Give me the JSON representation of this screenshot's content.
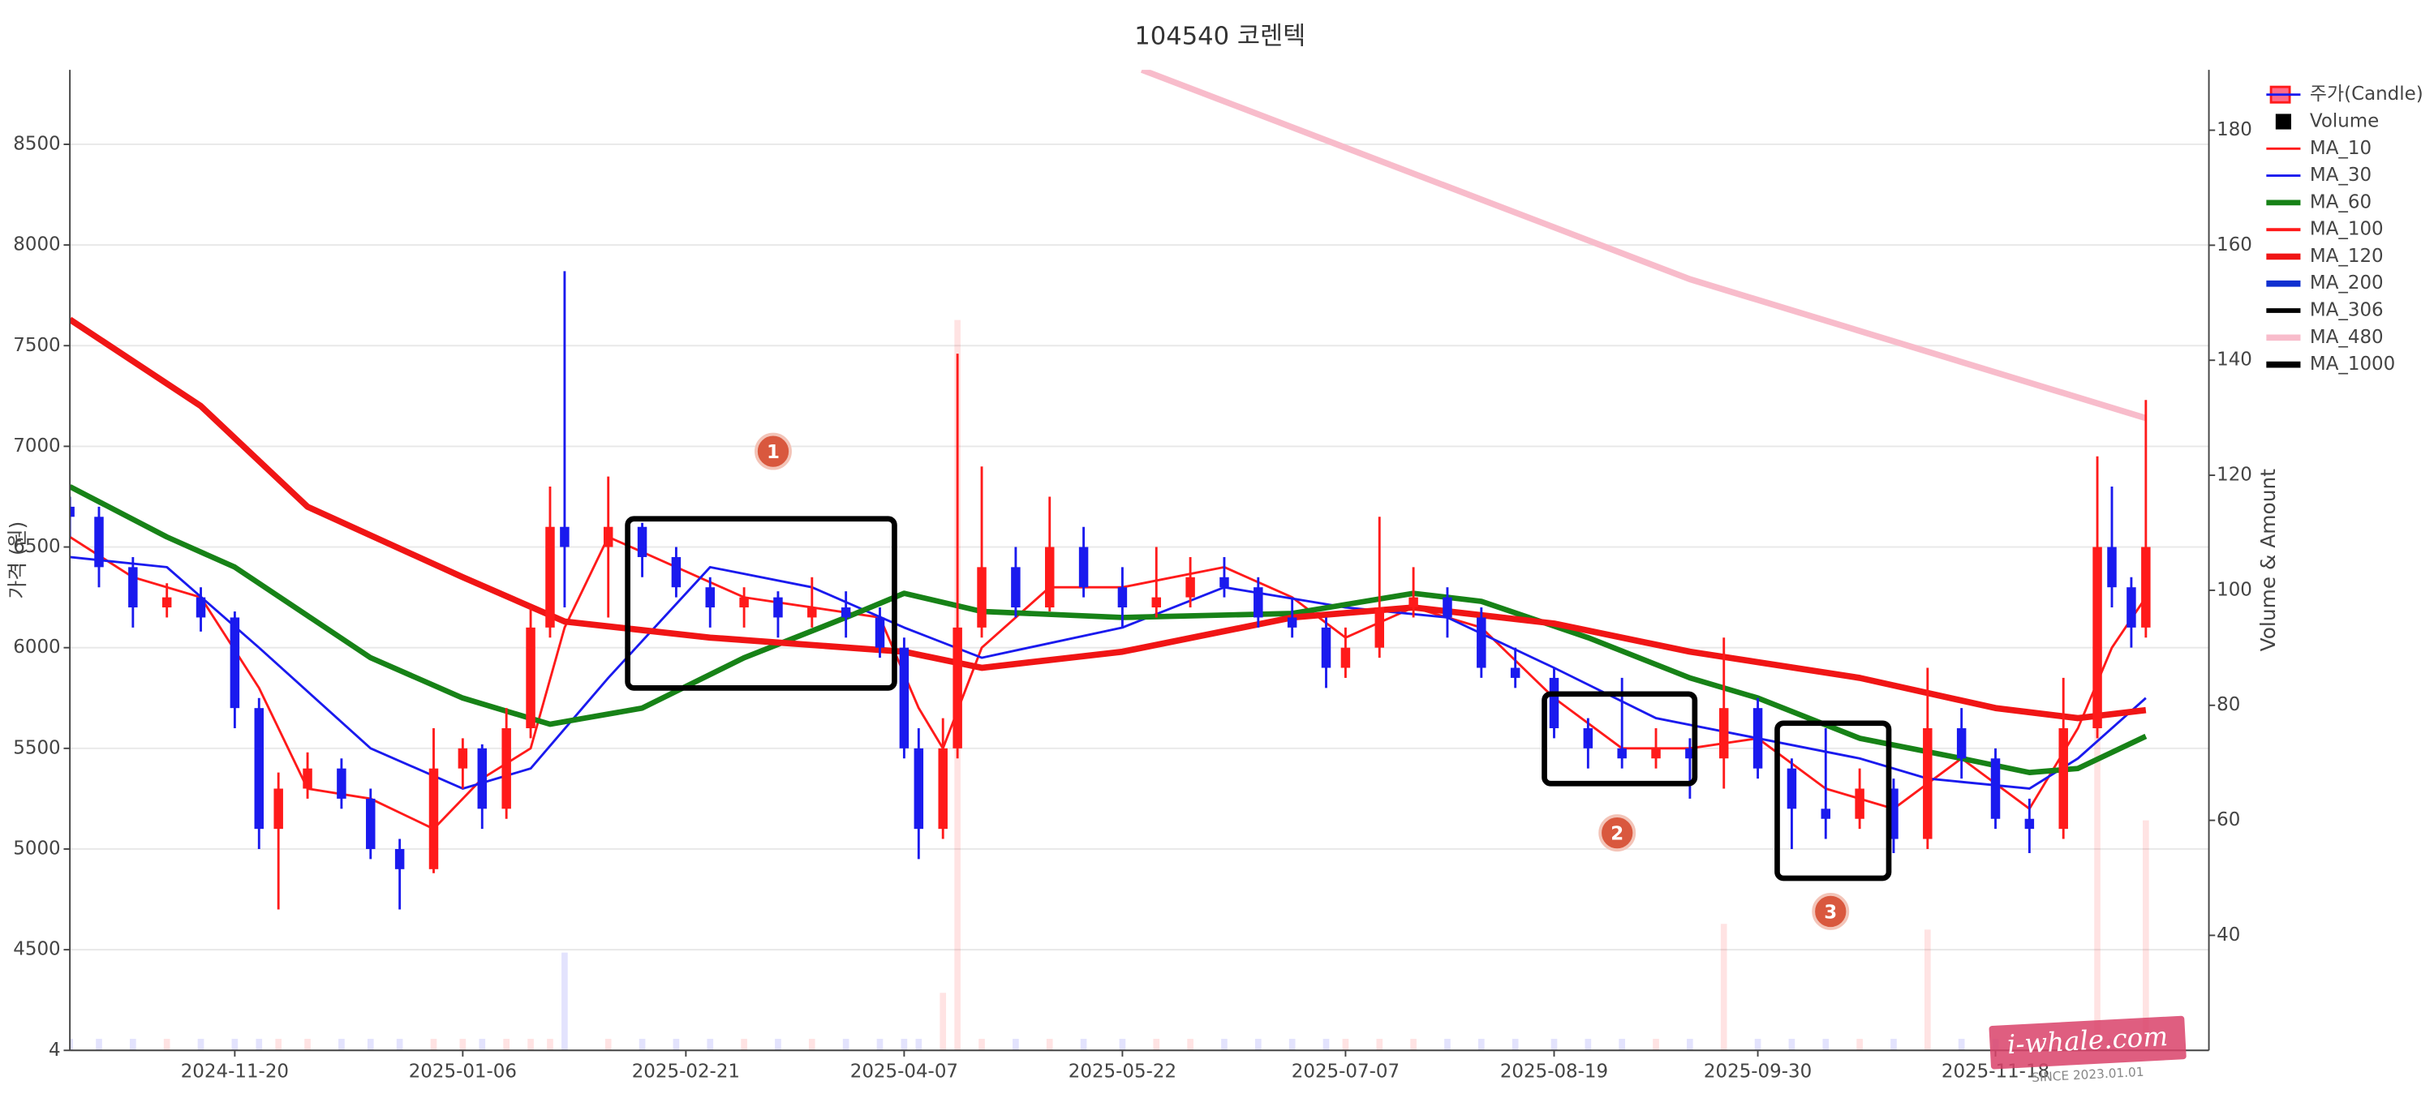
{
  "chart_data": {
    "type": "candlestick",
    "title": "104540 코렌텍",
    "ylabel": "가격 (원)",
    "y2label": "Volume & Amount",
    "legend": "upper right",
    "grid": true,
    "xlim": [
      "2024-10-17",
      "2026-01-01"
    ],
    "xticks": [
      "2024-11-20",
      "2025-01-06",
      "2025-02-21",
      "2025-04-07",
      "2025-05-22",
      "2025-07-07",
      "2025-08-19",
      "2025-09-30",
      "2025-11-18"
    ],
    "ylim": [
      4000,
      8870
    ],
    "yticks": [
      {
        "value": 4000,
        "label": "4"
      },
      4500,
      5000,
      5500,
      6000,
      6500,
      7000,
      7500,
      8000,
      8500
    ],
    "y2lim": [
      20,
      190.5
    ],
    "y2ticks": [
      40,
      60,
      80,
      100,
      120,
      140,
      160,
      180
    ],
    "candles": {
      "name": "주가(Candle)",
      "up_color": "#ff1a1a",
      "down_color": "#1a1aee",
      "x": [
        "2024-10-17",
        "2024-10-23",
        "2024-10-30",
        "2024-11-06",
        "2024-11-13",
        "2024-11-20",
        "2024-11-25",
        "2024-11-29",
        "2024-12-05",
        "2024-12-12",
        "2024-12-18",
        "2024-12-24",
        "2024-12-31",
        "2025-01-06",
        "2025-01-10",
        "2025-01-15",
        "2025-01-20",
        "2025-01-24",
        "2025-01-27",
        "2025-02-05",
        "2025-02-12",
        "2025-02-19",
        "2025-02-26",
        "2025-03-05",
        "2025-03-12",
        "2025-03-19",
        "2025-03-26",
        "2025-04-02",
        "2025-04-07",
        "2025-04-10",
        "2025-04-15",
        "2025-04-18",
        "2025-04-23",
        "2025-04-30",
        "2025-05-07",
        "2025-05-14",
        "2025-05-22",
        "2025-05-29",
        "2025-06-05",
        "2025-06-12",
        "2025-06-19",
        "2025-06-26",
        "2025-07-03",
        "2025-07-07",
        "2025-07-14",
        "2025-07-21",
        "2025-07-28",
        "2025-08-04",
        "2025-08-11",
        "2025-08-19",
        "2025-08-26",
        "2025-09-02",
        "2025-09-09",
        "2025-09-16",
        "2025-09-23",
        "2025-09-30",
        "2025-10-07",
        "2025-10-14",
        "2025-10-21",
        "2025-10-28",
        "2025-11-04",
        "2025-11-11",
        "2025-11-18",
        "2025-11-25",
        "2025-12-02",
        "2025-12-09",
        "2025-12-12",
        "2025-12-16",
        "2025-12-19"
      ],
      "open": [
        6700,
        6650,
        6400,
        6200,
        6250,
        6150,
        5700,
        5100,
        5300,
        5400,
        5250,
        5000,
        4900,
        5400,
        5500,
        5200,
        5600,
        6100,
        6600,
        6500,
        6600,
        6450,
        6300,
        6200,
        6250,
        6150,
        6200,
        6150,
        6000,
        5500,
        5100,
        5500,
        6100,
        6400,
        6200,
        6500,
        6300,
        6200,
        6250,
        6350,
        6300,
        6150,
        6100,
        5900,
        6000,
        6200,
        6250,
        6150,
        5900,
        5850,
        5600,
        5500,
        5450,
        5500,
        5450,
        5700,
        5400,
        5200,
        5150,
        5300,
        5050,
        5600,
        5450,
        5150,
        5100,
        5600,
        6500,
        6300,
        6100
      ],
      "high": [
        6750,
        6700,
        6450,
        6320,
        6300,
        6180,
        5750,
        5380,
        5480,
        5450,
        5300,
        5050,
        5600,
        5550,
        5520,
        5700,
        6200,
        6800,
        7870,
        6850,
        6620,
        6500,
        6350,
        6300,
        6280,
        6350,
        6280,
        6200,
        6050,
        5600,
        5650,
        7460,
        6900,
        6500,
        6750,
        6600,
        6400,
        6500,
        6450,
        6450,
        6350,
        6250,
        6150,
        6100,
        6650,
        6400,
        6300,
        6200,
        6000,
        5900,
        5650,
        5850,
        5600,
        5550,
        6050,
        5750,
        5450,
        5600,
        5400,
        5350,
        5900,
        5700,
        5500,
        5250,
        5850,
        6950,
        6800,
        6350,
        7230
      ],
      "low": [
        6550,
        6300,
        6100,
        6150,
        6080,
        5600,
        5000,
        4700,
        5250,
        5200,
        4950,
        4700,
        4880,
        5300,
        5100,
        5150,
        5550,
        6050,
        6200,
        6150,
        6350,
        6250,
        6100,
        6100,
        6050,
        6100,
        6050,
        5950,
        5450,
        4950,
        5050,
        5450,
        6050,
        6150,
        6180,
        6250,
        6100,
        6150,
        6200,
        6250,
        6100,
        6050,
        5800,
        5850,
        5950,
        6150,
        6050,
        5850,
        5800,
        5550,
        5400,
        5400,
        5400,
        5250,
        5300,
        5350,
        5000,
        5050,
        5100,
        4980,
        5000,
        5350,
        5100,
        4980,
        5050,
        5550,
        6200,
        6000,
        6050
      ],
      "close": [
        6650,
        6400,
        6200,
        6250,
        6150,
        5700,
        5100,
        5300,
        5400,
        5250,
        5000,
        4900,
        5400,
        5500,
        5200,
        5600,
        6100,
        6600,
        6500,
        6600,
        6450,
        6300,
        6200,
        6250,
        6150,
        6200,
        6150,
        6000,
        5500,
        5100,
        5500,
        6100,
        6400,
        6200,
        6500,
        6300,
        6200,
        6250,
        6350,
        6300,
        6150,
        6100,
        5900,
        6000,
        6200,
        6250,
        6150,
        5900,
        5850,
        5600,
        5500,
        5450,
        5500,
        5450,
        5700,
        5400,
        5200,
        5150,
        5300,
        5050,
        5600,
        5450,
        5150,
        5100,
        5600,
        6500,
        6300,
        6100,
        6500
      ]
    },
    "volume": {
      "name": "Volume",
      "axis": "y2",
      "color": "#000000",
      "values": [
        22,
        22,
        22,
        22,
        22,
        22,
        22,
        22,
        22,
        22,
        22,
        22,
        22,
        22,
        22,
        22,
        22,
        22,
        37,
        22,
        22,
        22,
        22,
        22,
        22,
        22,
        22,
        22,
        22,
        22,
        30,
        147,
        22,
        22,
        22,
        22,
        22,
        22,
        22,
        22,
        22,
        22,
        22,
        22,
        22,
        22,
        22,
        22,
        22,
        22,
        22,
        22,
        22,
        22,
        42,
        22,
        22,
        22,
        22,
        22,
        41,
        22,
        22,
        22,
        22,
        93,
        22,
        22,
        60
      ]
    },
    "series": [
      {
        "name": "MA_10",
        "color": "#ff1a1a",
        "width": 1.5,
        "x": [
          "2024-10-17",
          "2024-10-30",
          "2024-11-13",
          "2024-11-25",
          "2024-12-05",
          "2024-12-18",
          "2024-12-31",
          "2025-01-10",
          "2025-01-20",
          "2025-01-27",
          "2025-02-05",
          "2025-02-19",
          "2025-03-05",
          "2025-03-19",
          "2025-04-02",
          "2025-04-10",
          "2025-04-15",
          "2025-04-23",
          "2025-05-07",
          "2025-05-22",
          "2025-06-12",
          "2025-06-26",
          "2025-07-07",
          "2025-07-21",
          "2025-08-04",
          "2025-08-19",
          "2025-09-02",
          "2025-09-16",
          "2025-09-30",
          "2025-10-14",
          "2025-10-28",
          "2025-11-11",
          "2025-11-25",
          "2025-12-05",
          "2025-12-12",
          "2025-12-19"
        ],
        "values": [
          6550,
          6350,
          6250,
          5800,
          5300,
          5250,
          5100,
          5350,
          5500,
          6100,
          6550,
          6400,
          6250,
          6200,
          6150,
          5700,
          5500,
          6000,
          6300,
          6300,
          6400,
          6250,
          6050,
          6200,
          6100,
          5750,
          5500,
          5500,
          5550,
          5300,
          5200,
          5450,
          5200,
          5600,
          6000,
          6250
        ]
      },
      {
        "name": "MA_30",
        "color": "#1a1aee",
        "width": 1.5,
        "x": [
          "2024-10-17",
          "2024-11-06",
          "2024-11-25",
          "2024-12-18",
          "2025-01-06",
          "2025-01-20",
          "2025-02-05",
          "2025-02-26",
          "2025-03-19",
          "2025-04-07",
          "2025-04-23",
          "2025-05-22",
          "2025-06-12",
          "2025-07-07",
          "2025-07-28",
          "2025-08-19",
          "2025-09-09",
          "2025-09-30",
          "2025-10-21",
          "2025-11-04",
          "2025-11-25",
          "2025-12-05",
          "2025-12-19"
        ],
        "values": [
          6450,
          6400,
          6000,
          5500,
          5300,
          5400,
          5850,
          6400,
          6300,
          6100,
          5950,
          6100,
          6300,
          6200,
          6150,
          5900,
          5650,
          5550,
          5450,
          5350,
          5300,
          5450,
          5750
        ]
      },
      {
        "name": "MA_60",
        "color": "#178217",
        "width": 3.5,
        "x": [
          "2024-10-17",
          "2024-11-06",
          "2024-11-20",
          "2024-12-18",
          "2025-01-06",
          "2025-01-24",
          "2025-02-12",
          "2025-03-05",
          "2025-03-26",
          "2025-04-07",
          "2025-04-23",
          "2025-05-22",
          "2025-06-26",
          "2025-07-21",
          "2025-08-04",
          "2025-08-26",
          "2025-09-16",
          "2025-09-30",
          "2025-10-21",
          "2025-11-11",
          "2025-11-25",
          "2025-12-05",
          "2025-12-19"
        ],
        "values": [
          6800,
          6550,
          6400,
          5950,
          5750,
          5620,
          5700,
          5950,
          6150,
          6270,
          6180,
          6150,
          6170,
          6270,
          6230,
          6050,
          5850,
          5750,
          5550,
          5450,
          5380,
          5400,
          5560
        ]
      },
      {
        "name": "MA_100",
        "color": "#ff1a1a",
        "width": 2,
        "x": [],
        "values": []
      },
      {
        "name": "MA_120",
        "color": "#f01515",
        "width": 4,
        "x": [
          "2024-10-17",
          "2024-11-13",
          "2024-12-05",
          "2025-01-06",
          "2025-01-27",
          "2025-02-26",
          "2025-04-07",
          "2025-04-23",
          "2025-05-22",
          "2025-06-26",
          "2025-07-21",
          "2025-08-19",
          "2025-09-16",
          "2025-10-21",
          "2025-11-18",
          "2025-12-05",
          "2025-12-19"
        ],
        "values": [
          7630,
          7200,
          6700,
          6350,
          6130,
          6050,
          5980,
          5900,
          5980,
          6150,
          6200,
          6120,
          5980,
          5850,
          5700,
          5650,
          5690
        ]
      },
      {
        "name": "MA_200",
        "color": "#1030d0",
        "width": 4,
        "x": [],
        "values": []
      },
      {
        "name": "MA_306",
        "color": "#000000",
        "width": 3,
        "x": [],
        "values": []
      },
      {
        "name": "MA_480",
        "color": "#f8bccb",
        "width": 4,
        "x": [
          "2025-05-26",
          "2025-09-16",
          "2025-12-19"
        ],
        "values": [
          8870,
          7830,
          7140
        ]
      },
      {
        "name": "MA_1000",
        "color": "#000000",
        "width": 4,
        "x": [],
        "values": []
      }
    ],
    "annotations": {
      "boxes": [
        {
          "x": [
            "2025-02-09",
            "2025-04-05"
          ],
          "y": [
            5800,
            6640
          ]
        },
        {
          "x": [
            "2025-08-17",
            "2025-09-17"
          ],
          "y": [
            5325,
            5770
          ]
        },
        {
          "x": [
            "2025-10-04",
            "2025-10-27"
          ],
          "y": [
            4855,
            5625
          ]
        }
      ],
      "markers": [
        {
          "label": "1",
          "x": "2025-03-11",
          "y": 6975
        },
        {
          "label": "2",
          "x": "2025-09-01",
          "y": 5080
        },
        {
          "label": "3",
          "x": "2025-10-15",
          "y": 4690
        }
      ]
    }
  },
  "watermark": {
    "text": "i-whale.com",
    "subtext": "SINCE 2023.01.01"
  }
}
